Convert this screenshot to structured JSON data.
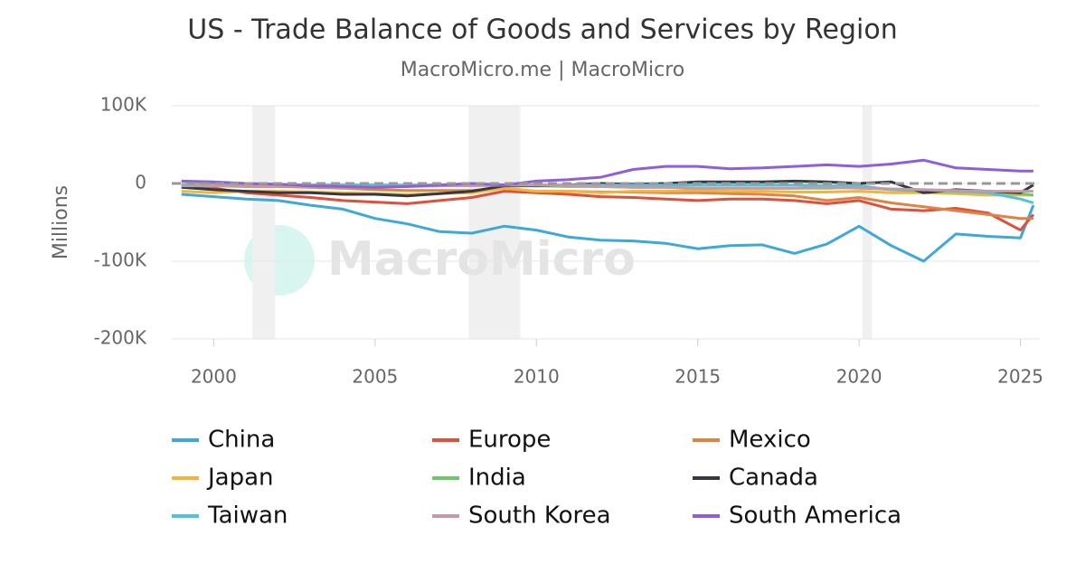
{
  "chart_data": {
    "type": "line",
    "title": "US - Trade Balance of Goods and Services by Region",
    "subtitle": "MacroMicro.me | MacroMicro",
    "y_label": "Millions",
    "watermark": "MacroMicro",
    "x": [
      1999,
      2000,
      2001,
      2002,
      2003,
      2004,
      2005,
      2006,
      2007,
      2008,
      2009,
      2010,
      2011,
      2012,
      2013,
      2014,
      2015,
      2016,
      2017,
      2018,
      2019,
      2020,
      2021,
      2022,
      2023,
      2024,
      2025,
      2025.4
    ],
    "xlim": [
      1998.7,
      2025.6
    ],
    "xticks": [
      2000,
      2005,
      2010,
      2015,
      2020,
      2025
    ],
    "ylim": [
      -200000,
      100000
    ],
    "yticks": [
      {
        "value": -200000,
        "label": "-200K"
      },
      {
        "value": -100000,
        "label": "-100K"
      },
      0,
      {
        "value": 100000,
        "label": "100K"
      }
    ],
    "grid": true,
    "reference_line": 0,
    "recessions": [
      [
        2001.2,
        2001.9
      ],
      [
        2007.9,
        2009.5
      ],
      [
        2020.1,
        2020.4
      ]
    ],
    "series": [
      {
        "name": "China",
        "color": "#3ea8da",
        "values": [
          -14000,
          -17000,
          -20000,
          -22000,
          -28000,
          -33000,
          -45000,
          -52000,
          -62000,
          -64000,
          -55000,
          -60000,
          -69000,
          -73000,
          -74000,
          -77000,
          -84000,
          -80000,
          -79000,
          -90000,
          -78000,
          -55000,
          -80000,
          -100000,
          -65000,
          -68000,
          -70000,
          -28000
        ]
      },
      {
        "name": "Europe",
        "color": "#e04f39",
        "values": [
          -3000,
          -6000,
          -12000,
          -15000,
          -18000,
          -22000,
          -24000,
          -26000,
          -22000,
          -18000,
          -10000,
          -12000,
          -14000,
          -17000,
          -18000,
          -20000,
          -22000,
          -20000,
          -20000,
          -22000,
          -26000,
          -22000,
          -33000,
          -35000,
          -32000,
          -38000,
          -60000,
          -40000
        ]
      },
      {
        "name": "Mexico",
        "color": "#dd8444",
        "values": [
          -3000,
          -3000,
          -4000,
          -4000,
          -5000,
          -6000,
          -8000,
          -9000,
          -9000,
          -9000,
          -6000,
          -10000,
          -10000,
          -11000,
          -11000,
          -12000,
          -12000,
          -13000,
          -14000,
          -16000,
          -22000,
          -18000,
          -25000,
          -30000,
          -35000,
          -40000,
          -45000,
          -45000
        ]
      },
      {
        "name": "Japan",
        "color": "#f2b53a",
        "values": [
          -10000,
          -12000,
          -10000,
          -10000,
          -11000,
          -12000,
          -13000,
          -14000,
          -13000,
          -12000,
          -6000,
          -10000,
          -10000,
          -12000,
          -10000,
          -10000,
          -9000,
          -10000,
          -10000,
          -11000,
          -11000,
          -10000,
          -12000,
          -12000,
          -13000,
          -15000,
          -15000,
          -15000
        ]
      },
      {
        "name": "India",
        "color": "#6cc96a",
        "values": [
          -1000,
          -1000,
          -1000,
          -1000,
          -2000,
          -2000,
          -2000,
          -3000,
          -3000,
          -2000,
          -2000,
          -3000,
          -4000,
          -4000,
          -5000,
          -5000,
          -6000,
          -6000,
          -6000,
          -6000,
          -6000,
          -5000,
          -8000,
          -10000,
          -10000,
          -11000,
          -13000,
          -15000
        ]
      },
      {
        "name": "Canada",
        "color": "#333845",
        "values": [
          -5000,
          -8000,
          -10000,
          -12000,
          -12000,
          -14000,
          -14000,
          -16000,
          -13000,
          -10000,
          -3000,
          -3000,
          -2000,
          0,
          -1000,
          0,
          2000,
          2000,
          2000,
          3000,
          2000,
          0,
          2000,
          -12000,
          -8000,
          -10000,
          -12000,
          -2000
        ]
      },
      {
        "name": "Taiwan",
        "color": "#4cc6d6",
        "values": [
          -3000,
          -3000,
          -2000,
          -2000,
          -2000,
          -2000,
          -2000,
          -2000,
          -2000,
          -2000,
          -2000,
          -2000,
          -2000,
          -2000,
          -2000,
          -2000,
          -2000,
          -2000,
          -2000,
          -2000,
          -3000,
          -3000,
          -8000,
          -8000,
          -10000,
          -12000,
          -20000,
          -25000
        ]
      },
      {
        "name": "South Korea",
        "color": "#c49aab",
        "values": [
          -2000,
          -3000,
          -3000,
          -3000,
          -4000,
          -5000,
          -5000,
          -4000,
          -3000,
          -3000,
          -2000,
          -2000,
          -3000,
          -4000,
          -5000,
          -5000,
          -6000,
          -6000,
          -6000,
          -6000,
          -5000,
          -6000,
          -7000,
          -8000,
          -9000,
          -10000,
          -10000,
          -10000
        ]
      },
      {
        "name": "South America",
        "color": "#8e5fd8",
        "values": [
          3000,
          2000,
          0,
          -1000,
          -3000,
          -4000,
          -5000,
          -4000,
          -2000,
          0,
          -2000,
          3000,
          5000,
          8000,
          18000,
          22000,
          22000,
          19000,
          20000,
          22000,
          24000,
          22000,
          25000,
          30000,
          20000,
          18000,
          16000,
          16000
        ]
      }
    ]
  }
}
